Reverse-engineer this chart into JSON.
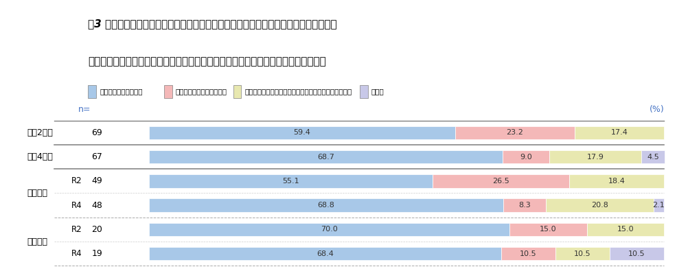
{
  "title_line1": "問3 令和４年９月１日時点における貴センターでの新型コロナウイルス感染症の相談体",
  "title_line2": "制について、該当するものを回答欄のプルダウンリストから一つ選択してください。",
  "legend_labels": [
    "通常の相談体制で対応",
    "通常の体制を拡大して対応",
    "新型コロナウイルス感染症関係の専用窓口を設けて対応",
    "その他"
  ],
  "legend_colors": [
    "#a8c8e8",
    "#f4b8b8",
    "#e8e8b0",
    "#c8c8e8"
  ],
  "rows": [
    {
      "group": "令和2年度",
      "sub": "",
      "n": "69",
      "values": [
        59.4,
        23.2,
        17.4,
        0.0
      ]
    },
    {
      "group": "令和4年度",
      "sub": "",
      "n": "67",
      "values": [
        68.7,
        9.0,
        17.9,
        4.5
      ]
    },
    {
      "group": "都道府県",
      "sub": "R2",
      "n": "49",
      "values": [
        55.1,
        26.5,
        18.4,
        0.0
      ]
    },
    {
      "group": "都道府県",
      "sub": "R4",
      "n": "48",
      "values": [
        68.8,
        8.3,
        20.8,
        2.1
      ]
    },
    {
      "group": "指定都市",
      "sub": "R2",
      "n": "20",
      "values": [
        70.0,
        15.0,
        15.0,
        0.0
      ]
    },
    {
      "group": "指定都市",
      "sub": "R4",
      "n": "19",
      "values": [
        68.4,
        10.5,
        10.5,
        10.5
      ]
    }
  ],
  "bar_colors": [
    "#a8c8e8",
    "#f4b8b8",
    "#e8e8b0",
    "#c8c8e8"
  ],
  "title_fontsize": 11,
  "label_fontsize": 8.5,
  "tick_fontsize": 9,
  "bg_color": "#ffffff",
  "separator_thick": [
    0,
    2,
    4
  ],
  "separator_dashed": [
    3,
    5
  ]
}
